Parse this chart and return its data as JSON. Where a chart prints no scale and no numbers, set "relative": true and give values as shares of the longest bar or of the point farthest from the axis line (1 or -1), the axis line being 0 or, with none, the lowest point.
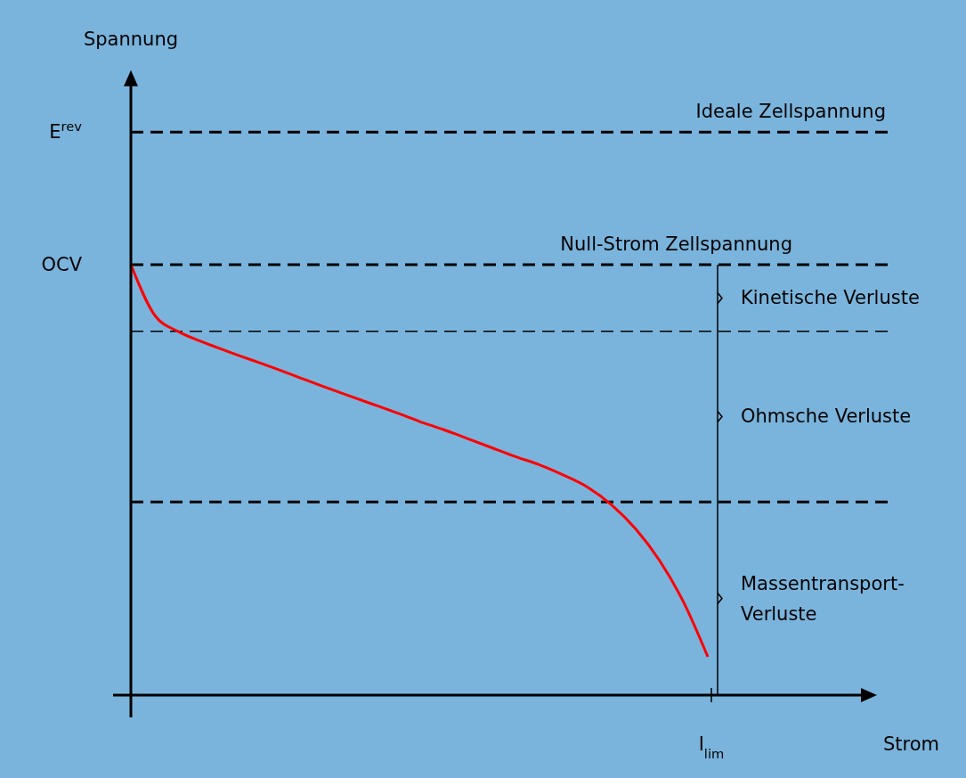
{
  "chart_data": {
    "type": "line",
    "relative": true,
    "categories": [
      null,
      null,
      null,
      null,
      null,
      null,
      null,
      null,
      null,
      null,
      null,
      null,
      null,
      null,
      null,
      null,
      null,
      null,
      null,
      null,
      null,
      null,
      null,
      null,
      null
    ],
    "series": [
      {
        "color": "#ff0000",
        "values": [
          1,
          0.882,
          0.844,
          0.82,
          0.799,
          0.779,
          0.759,
          0.738,
          0.717,
          0.697,
          0.677,
          0.657,
          0.636,
          0.617,
          0.596,
          0.575,
          0.554,
          0.535,
          0.511,
          0.483,
          0.442,
          0.386,
          0.312,
          0.215,
          0.089
        ]
      }
    ],
    "ref_lines": [
      {
        "axis": "y",
        "value": 1.308,
        "label": "Ideale Zellspannung",
        "line_style": "dashed"
      },
      {
        "axis": "y",
        "value": 1,
        "label": "Null-Strom Zellspannung",
        "line_style": "dashed"
      },
      {
        "axis": "y",
        "value": 0.845,
        "label": null,
        "line_style": "dashed"
      },
      {
        "axis": "y",
        "value": 0.449,
        "label": null,
        "line_style": "dashed"
      }
    ],
    "annotations": [
      "E$^{rev}$",
      "OCV",
      "Kinetische Verluste",
      "Ohmsche Verluste",
      "Massentransport-Verluste",
      "I$_{lim}$",
      "Spannung",
      "Strom"
    ],
    "marker": "none",
    "line_style": "solid"
  }
}
